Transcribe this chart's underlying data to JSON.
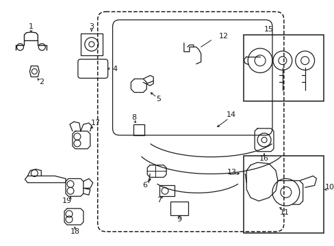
{
  "background_color": "#ffffff",
  "line_color": "#1a1a1a",
  "fig_w": 4.89,
  "fig_h": 3.6,
  "dpi": 100
}
